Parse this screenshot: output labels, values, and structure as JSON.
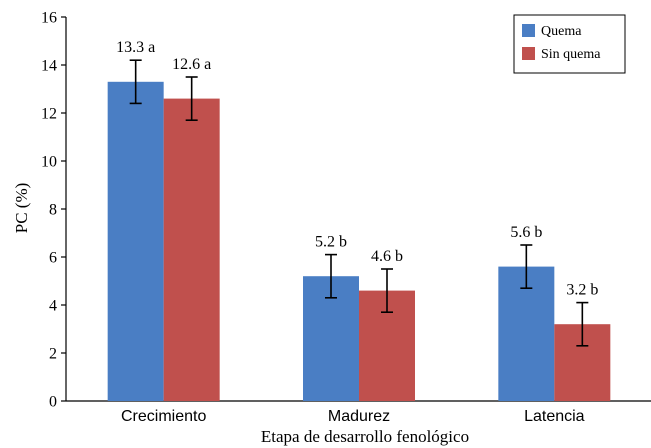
{
  "chart_data": {
    "type": "bar",
    "title": "",
    "xlabel": "Etapa de desarrollo fenológico",
    "ylabel": "PC (%)",
    "ylim": [
      0,
      16
    ],
    "yticks": [
      "0",
      "2",
      "4",
      "6",
      "8",
      "10",
      "12",
      "14",
      "16"
    ],
    "categories": [
      "Crecimiento",
      "Madurez",
      "Latencia"
    ],
    "series": [
      {
        "name": "Quema",
        "color": "#4a7ec4",
        "values": [
          13.3,
          5.2,
          5.6
        ],
        "errors": [
          0.9,
          0.9,
          0.9
        ],
        "labels": [
          "13.3 a",
          "5.2 b",
          "5.6 b"
        ]
      },
      {
        "name": "Sin quema",
        "color": "#c0504d",
        "values": [
          12.6,
          4.6,
          3.2
        ],
        "errors": [
          0.9,
          0.9,
          0.9
        ],
        "labels": [
          "12.6 a",
          "4.6 b",
          "3.2 b"
        ]
      }
    ],
    "grid": false,
    "legend_position": "top-right"
  }
}
